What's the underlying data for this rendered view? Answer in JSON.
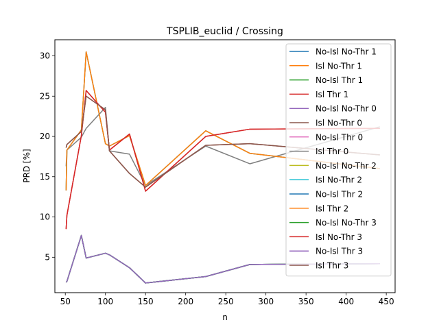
{
  "chart_data": {
    "type": "line",
    "title": "TSPLIB_euclid / Crossing",
    "xlabel": "n",
    "ylabel": "PRD [%]",
    "xlim": [
      37,
      461
    ],
    "ylim": [
      0.6,
      32
    ],
    "xticks": [
      50,
      100,
      150,
      200,
      250,
      300,
      350,
      400,
      450
    ],
    "yticks": [
      5,
      10,
      15,
      20,
      25,
      30
    ],
    "grid": false,
    "legend_position": "top-right",
    "x": [
      51,
      52,
      70,
      76,
      100,
      105,
      130,
      150,
      225,
      280,
      442
    ],
    "series": [
      {
        "name": "No-Isl No-Thr 1",
        "color": "#1f77b4",
        "values": [
          1.9,
          2.0,
          7.7,
          4.9,
          5.5,
          5.3,
          3.7,
          1.8,
          2.6,
          4.1,
          4.2
        ]
      },
      {
        "name": "Isl No-Thr 1",
        "color": "#ff7f0e",
        "values": [
          13.3,
          18.3,
          20.8,
          30.5,
          19.1,
          18.8,
          20.1,
          13.9,
          20.7,
          17.9,
          16.0
        ]
      },
      {
        "name": "No-Isl Thr 1",
        "color": "#2ca02c",
        "values": [
          1.9,
          2.0,
          7.7,
          4.9,
          5.5,
          5.3,
          3.7,
          1.8,
          2.6,
          4.1,
          4.2
        ]
      },
      {
        "name": "Isl Thr 1",
        "color": "#d62728",
        "values": [
          8.5,
          10.2,
          20.1,
          25.7,
          23.0,
          18.3,
          20.3,
          13.2,
          20.0,
          20.9,
          21.0
        ]
      },
      {
        "name": "No-Isl No-Thr 0",
        "color": "#9467bd",
        "values": [
          1.9,
          2.0,
          7.7,
          4.9,
          5.5,
          5.3,
          3.7,
          1.8,
          2.6,
          4.1,
          4.2
        ]
      },
      {
        "name": "Isl No-Thr 0",
        "color": "#8c564b",
        "values": [
          18.6,
          19.0,
          20.6,
          25.0,
          23.3,
          18.2,
          15.4,
          13.7,
          18.9,
          19.1,
          17.7
        ]
      },
      {
        "name": "No-Isl Thr 0",
        "color": "#e377c2",
        "values": [
          1.9,
          2.0,
          7.7,
          4.9,
          5.5,
          5.3,
          3.7,
          1.8,
          2.6,
          4.1,
          4.2
        ]
      },
      {
        "name": "Isl Thr 0",
        "color": "#7f7f7f",
        "values": [
          16.3,
          18.3,
          19.9,
          21.0,
          23.6,
          18.2,
          17.8,
          13.9,
          18.8,
          16.6,
          21.2
        ]
      },
      {
        "name": "No-Isl No-Thr 2",
        "color": "#bcbd22",
        "values": [
          1.9,
          2.0,
          7.7,
          4.9,
          5.5,
          5.3,
          3.7,
          1.8,
          2.6,
          4.1,
          4.2
        ]
      },
      {
        "name": "Isl No-Thr 2",
        "color": "#17becf",
        "values": [
          13.3,
          18.3,
          20.8,
          30.5,
          19.1,
          18.8,
          20.1,
          13.9,
          20.7,
          17.9,
          16.0
        ]
      },
      {
        "name": "No-Isl Thr 2",
        "color": "#1f77b4",
        "values": [
          1.9,
          2.0,
          7.7,
          4.9,
          5.5,
          5.3,
          3.7,
          1.8,
          2.6,
          4.1,
          4.2
        ]
      },
      {
        "name": "Isl Thr 2",
        "color": "#ff7f0e",
        "values": [
          13.3,
          18.3,
          20.8,
          30.5,
          19.1,
          18.8,
          20.1,
          13.9,
          20.7,
          17.9,
          16.0
        ]
      },
      {
        "name": "No-Isl No-Thr 3",
        "color": "#2ca02c",
        "values": [
          1.9,
          2.0,
          7.7,
          4.9,
          5.5,
          5.3,
          3.7,
          1.8,
          2.6,
          4.1,
          4.2
        ]
      },
      {
        "name": "Isl No-Thr 3",
        "color": "#d62728",
        "values": [
          8.5,
          10.2,
          20.1,
          25.7,
          23.0,
          18.3,
          20.3,
          13.2,
          20.0,
          20.9,
          21.0
        ]
      },
      {
        "name": "No-Isl Thr 3",
        "color": "#9467bd",
        "values": [
          1.9,
          2.0,
          7.7,
          4.9,
          5.5,
          5.3,
          3.7,
          1.8,
          2.6,
          4.1,
          4.2
        ]
      },
      {
        "name": "Isl Thr 3",
        "color": "#8c564b",
        "values": [
          18.6,
          19.0,
          20.6,
          25.0,
          23.3,
          18.2,
          15.4,
          13.7,
          18.9,
          19.1,
          17.7
        ]
      }
    ]
  }
}
